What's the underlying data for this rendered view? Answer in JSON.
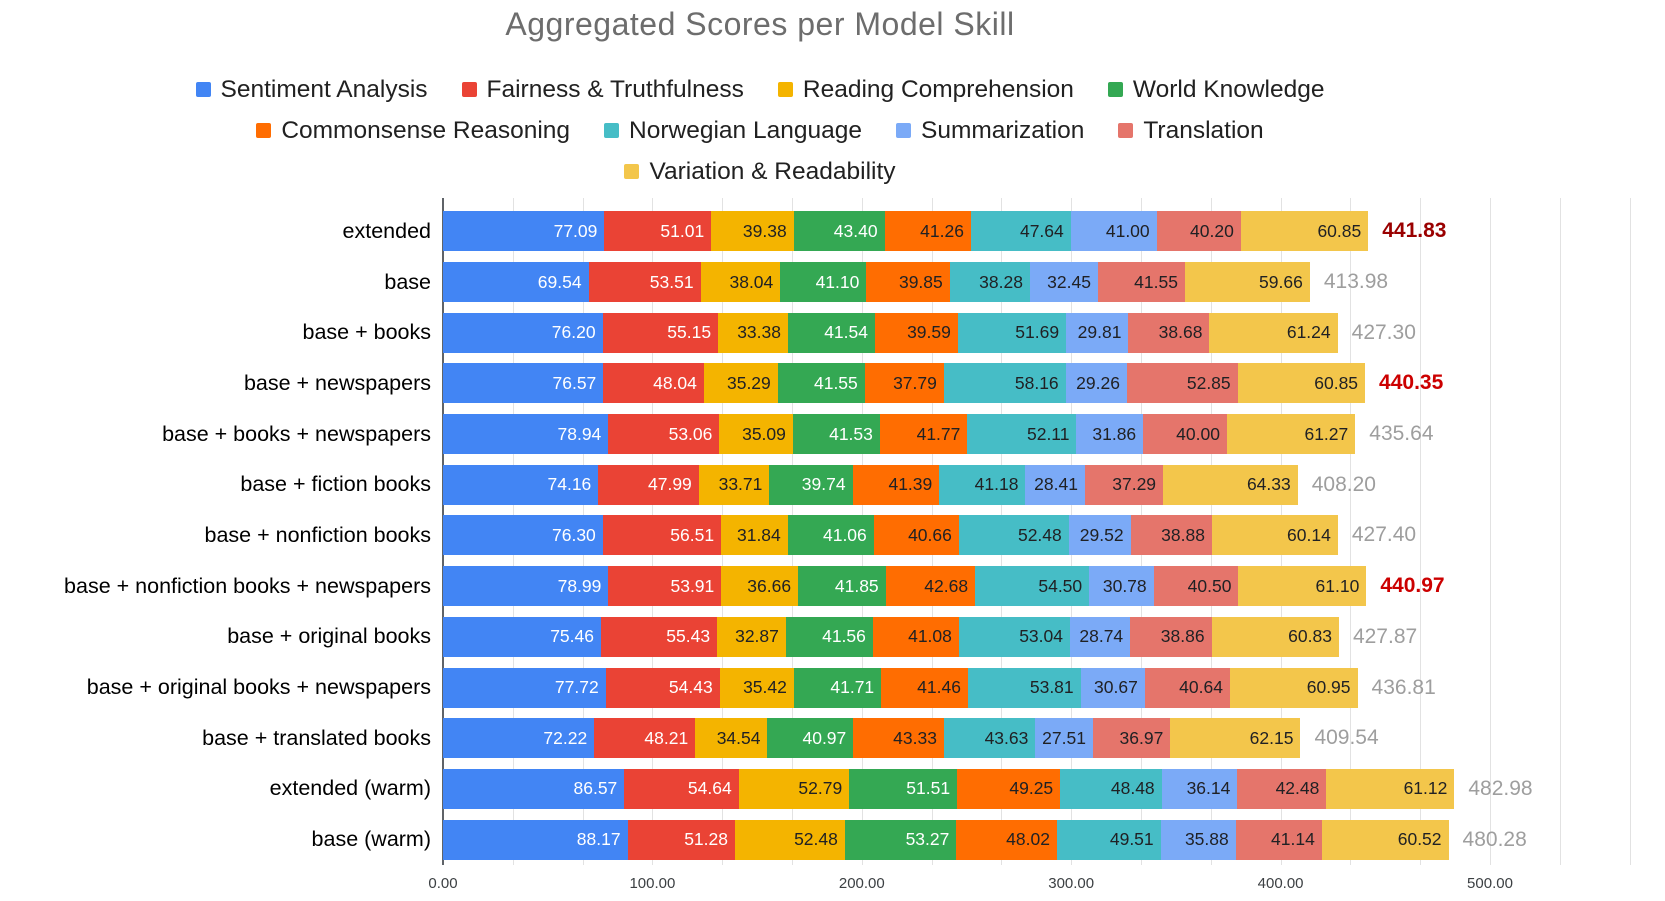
{
  "chart_data": {
    "type": "bar",
    "stacked": true,
    "orientation": "horizontal",
    "title": "Aggregated Scores per Model Skill",
    "xlabel": "",
    "ylabel": "",
    "xlim": [
      0,
      500
    ],
    "x_ticks": [
      "0.00",
      "100.00",
      "200.00",
      "300.00",
      "400.00",
      "500.00"
    ],
    "grid": "minor vertical gridlines every 33.33 units",
    "legend_position": "top",
    "legend_rows": [
      [
        0,
        1,
        2,
        3
      ],
      [
        4,
        5,
        6,
        7
      ],
      [
        8
      ]
    ],
    "categories": [
      "extended",
      "base",
      "base + books",
      "base + newspapers",
      "base + books + newspapers",
      "base + fiction books",
      "base + nonfiction books",
      "base + nonfiction books + newspapers",
      "base + original books",
      "base + original books + newspapers",
      "base + translated books",
      "extended (warm)",
      "base (warm)"
    ],
    "series": [
      {
        "name": "Sentiment Analysis",
        "color": "#4285F4",
        "label_color": "#ffffff",
        "values": [
          77.09,
          69.54,
          76.2,
          76.57,
          78.94,
          74.16,
          76.3,
          78.99,
          75.46,
          77.72,
          72.22,
          86.57,
          88.17
        ]
      },
      {
        "name": "Fairness & Truthfulness",
        "color": "#EA4335",
        "label_color": "#ffffff",
        "values": [
          51.01,
          53.51,
          55.15,
          48.04,
          53.06,
          47.99,
          56.51,
          53.91,
          55.43,
          54.43,
          48.21,
          54.64,
          51.28
        ]
      },
      {
        "name": "Reading Comprehension",
        "color": "#F4B400",
        "label_color": "#202124",
        "values": [
          39.38,
          38.04,
          33.38,
          35.29,
          35.09,
          33.71,
          31.84,
          36.66,
          32.87,
          35.42,
          34.54,
          52.79,
          52.48
        ]
      },
      {
        "name": "World Knowledge",
        "color": "#34A853",
        "label_color": "#ffffff",
        "values": [
          43.4,
          41.1,
          41.54,
          41.55,
          41.53,
          39.74,
          41.06,
          41.85,
          41.56,
          41.71,
          40.97,
          51.51,
          53.27
        ]
      },
      {
        "name": "Commonsense Reasoning",
        "color": "#FF6D01",
        "label_color": "#202124",
        "values": [
          41.26,
          39.85,
          39.59,
          37.79,
          41.77,
          41.39,
          40.66,
          42.68,
          41.08,
          41.46,
          43.33,
          49.25,
          48.02
        ]
      },
      {
        "name": "Norwegian Language",
        "color": "#46BDC6",
        "label_color": "#202124",
        "values": [
          47.64,
          38.28,
          51.69,
          58.16,
          52.11,
          41.18,
          52.48,
          54.5,
          53.04,
          53.81,
          43.63,
          48.48,
          49.51
        ]
      },
      {
        "name": "Summarization",
        "color": "#7BAAF7",
        "label_color": "#202124",
        "values": [
          41.0,
          32.45,
          29.81,
          29.26,
          31.86,
          28.41,
          29.52,
          30.78,
          28.74,
          30.67,
          27.51,
          36.14,
          35.88
        ]
      },
      {
        "name": "Translation",
        "color": "#E5756B",
        "label_color": "#202124",
        "values": [
          40.2,
          41.55,
          38.68,
          52.85,
          40.0,
          37.29,
          38.88,
          40.5,
          38.86,
          40.64,
          36.97,
          42.48,
          41.14
        ]
      },
      {
        "name": "Variation & Readability",
        "color": "#F3C64B",
        "label_color": "#202124",
        "values": [
          60.85,
          59.66,
          61.24,
          60.85,
          61.27,
          64.33,
          60.14,
          61.1,
          60.83,
          60.95,
          62.15,
          61.12,
          60.52
        ]
      }
    ],
    "totals": [
      {
        "value": "441.83",
        "highlight": "dark-red"
      },
      {
        "value": "413.98",
        "highlight": "gray"
      },
      {
        "value": "427.30",
        "highlight": "gray"
      },
      {
        "value": "440.35",
        "highlight": "red"
      },
      {
        "value": "435.64",
        "highlight": "gray"
      },
      {
        "value": "408.20",
        "highlight": "gray"
      },
      {
        "value": "427.40",
        "highlight": "gray"
      },
      {
        "value": "440.97",
        "highlight": "red"
      },
      {
        "value": "427.87",
        "highlight": "gray"
      },
      {
        "value": "436.81",
        "highlight": "gray"
      },
      {
        "value": "409.54",
        "highlight": "gray"
      },
      {
        "value": "482.98",
        "highlight": "gray"
      },
      {
        "value": "480.28",
        "highlight": "gray"
      }
    ],
    "total_colors": {
      "gray": "#9e9e9e",
      "red": "#cc0000",
      "dark-red": "#9a0000"
    }
  }
}
